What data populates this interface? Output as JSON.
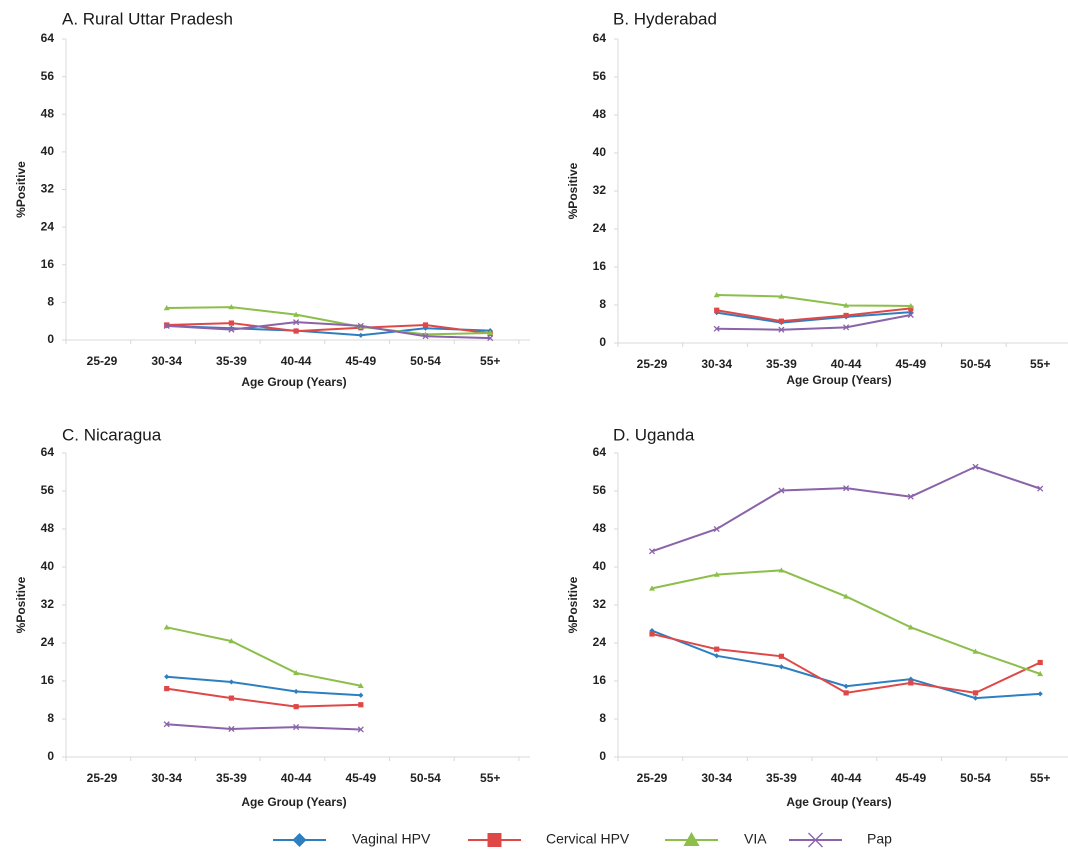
{
  "colors": {
    "Vaginal HPV": "#2e7fc0",
    "Cervical HPV": "#e04848",
    "VIA": "#8cbf4a",
    "Pap": "#8a63a8"
  },
  "chart_data": [
    {
      "type": "line",
      "title": "A. Rural Uttar Pradesh",
      "xlabel": "Age Group (Years)",
      "ylabel": "%Positive",
      "categories": [
        "25-29",
        "30-34",
        "35-39",
        "40-44",
        "45-49",
        "50-54",
        "55+"
      ],
      "yticks": [
        0,
        8,
        16,
        24,
        32,
        40,
        48,
        56,
        64
      ],
      "ylim": [
        0,
        64
      ],
      "series": [
        {
          "name": "Vaginal HPV",
          "marker": "diamond",
          "values": [
            null,
            3.0,
            2.5,
            2.0,
            1.0,
            2.5,
            2.0
          ]
        },
        {
          "name": "Cervical HPV",
          "marker": "square",
          "values": [
            null,
            3.2,
            3.6,
            1.9,
            2.6,
            3.2,
            1.4
          ]
        },
        {
          "name": "VIA",
          "marker": "triangle",
          "values": [
            null,
            6.8,
            7.0,
            5.4,
            2.8,
            1.2,
            1.5
          ]
        },
        {
          "name": "Pap",
          "marker": "x",
          "values": [
            null,
            3.0,
            2.2,
            3.8,
            3.0,
            0.8,
            0.4
          ]
        }
      ]
    },
    {
      "type": "line",
      "title": "B. Hyderabad",
      "xlabel": "Age Group (Years)",
      "ylabel": "%Positive",
      "categories": [
        "25-29",
        "30-34",
        "35-39",
        "40-44",
        "45-49",
        "50-54",
        "55+"
      ],
      "yticks": [
        0,
        8,
        16,
        24,
        32,
        40,
        48,
        56,
        64
      ],
      "ylim": [
        0,
        64
      ],
      "series": [
        {
          "name": "Vaginal HPV",
          "marker": "diamond",
          "values": [
            null,
            6.4,
            4.3,
            5.5,
            6.5,
            null,
            null
          ]
        },
        {
          "name": "Cervical HPV",
          "marker": "square",
          "values": [
            null,
            6.9,
            4.6,
            5.8,
            7.3,
            null,
            null
          ]
        },
        {
          "name": "VIA",
          "marker": "triangle",
          "values": [
            null,
            10.1,
            9.8,
            7.9,
            7.8,
            null,
            null
          ]
        },
        {
          "name": "Pap",
          "marker": "x",
          "values": [
            null,
            3.0,
            2.8,
            3.3,
            5.9,
            null,
            null
          ]
        }
      ]
    },
    {
      "type": "line",
      "title": "C. Nicaragua",
      "xlabel": "Age Group (Years)",
      "ylabel": "%Positive",
      "categories": [
        "25-29",
        "30-34",
        "35-39",
        "40-44",
        "45-49",
        "50-54",
        "55+"
      ],
      "yticks": [
        0,
        8,
        16,
        24,
        32,
        40,
        48,
        56,
        64
      ],
      "ylim": [
        0,
        64
      ],
      "series": [
        {
          "name": "Vaginal HPV",
          "marker": "diamond",
          "values": [
            null,
            16.9,
            15.8,
            13.8,
            13.0,
            null,
            null
          ]
        },
        {
          "name": "Cervical HPV",
          "marker": "square",
          "values": [
            null,
            14.4,
            12.4,
            10.6,
            11.0,
            null,
            null
          ]
        },
        {
          "name": "VIA",
          "marker": "triangle",
          "values": [
            null,
            27.3,
            24.4,
            17.7,
            15.0,
            null,
            null
          ]
        },
        {
          "name": "Pap",
          "marker": "x",
          "values": [
            null,
            6.9,
            5.9,
            6.3,
            5.8,
            null,
            null
          ]
        }
      ]
    },
    {
      "type": "line",
      "title": "D. Uganda",
      "xlabel": "Age Group (Years)",
      "ylabel": "%Positive",
      "categories": [
        "25-29",
        "30-34",
        "35-39",
        "40-44",
        "45-49",
        "50-54",
        "55+"
      ],
      "yticks": [
        0,
        8,
        16,
        24,
        32,
        40,
        48,
        56,
        64
      ],
      "ylim": [
        0,
        64
      ],
      "series": [
        {
          "name": "Vaginal HPV",
          "marker": "diamond",
          "values": [
            26.6,
            21.3,
            19.0,
            14.9,
            16.4,
            12.4,
            13.3
          ]
        },
        {
          "name": "Cervical HPV",
          "marker": "square",
          "values": [
            25.9,
            22.7,
            21.2,
            13.5,
            15.6,
            13.5,
            19.9
          ]
        },
        {
          "name": "VIA",
          "marker": "triangle",
          "values": [
            35.5,
            38.4,
            39.3,
            33.8,
            27.3,
            22.2,
            17.5
          ]
        },
        {
          "name": "Pap",
          "marker": "x",
          "values": [
            43.3,
            48.0,
            56.1,
            56.6,
            54.8,
            61.1,
            56.5
          ]
        }
      ]
    }
  ],
  "legend": {
    "items": [
      {
        "label": "Vaginal HPV",
        "marker": "diamond"
      },
      {
        "label": "Cervical HPV",
        "marker": "square"
      },
      {
        "label": "VIA",
        "marker": "triangle"
      },
      {
        "label": "Pap",
        "marker": "x"
      }
    ]
  }
}
